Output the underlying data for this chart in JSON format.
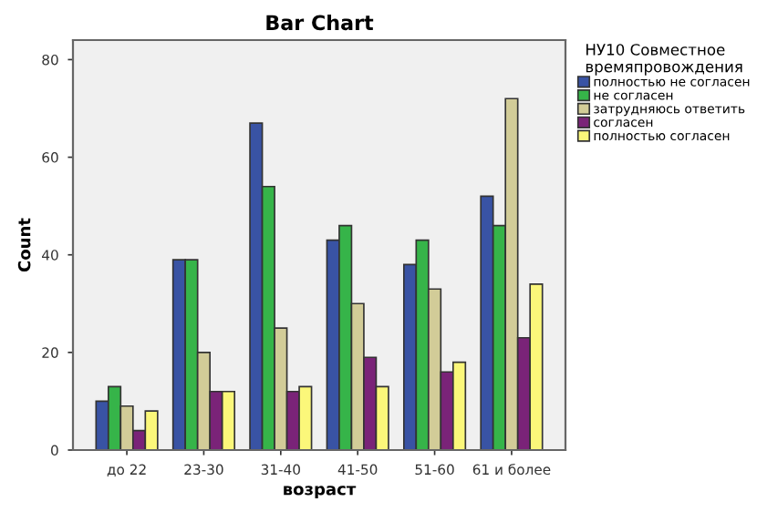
{
  "chart_data": {
    "type": "bar",
    "title": "Bar Chart",
    "xlabel": "возраст",
    "ylabel": "Count",
    "legend_title": "НУ10 Совместное\nвремяпровождения",
    "categories": [
      "до 22",
      "23-30",
      "31-40",
      "41-50",
      "51-60",
      "61 и более"
    ],
    "series": [
      {
        "name": "полностью не согласен",
        "color": "#3953a4",
        "values": [
          10,
          39,
          67,
          43,
          38,
          52
        ]
      },
      {
        "name": "не согласен",
        "color": "#36b449",
        "values": [
          13,
          39,
          54,
          46,
          43,
          46
        ]
      },
      {
        "name": "затрудняюсь ответить",
        "color": "#d2cc98",
        "values": [
          9,
          20,
          25,
          30,
          33,
          72
        ]
      },
      {
        "name": "согласен",
        "color": "#7a2378",
        "values": [
          4,
          12,
          12,
          19,
          16,
          23
        ]
      },
      {
        "name": "полностью согласен",
        "color": "#fbf77a",
        "values": [
          8,
          12,
          13,
          13,
          18,
          34
        ]
      }
    ],
    "ylim": [
      0,
      84
    ],
    "yticks": [
      0,
      20,
      40,
      60,
      80
    ],
    "grid": false,
    "legend": "right"
  }
}
